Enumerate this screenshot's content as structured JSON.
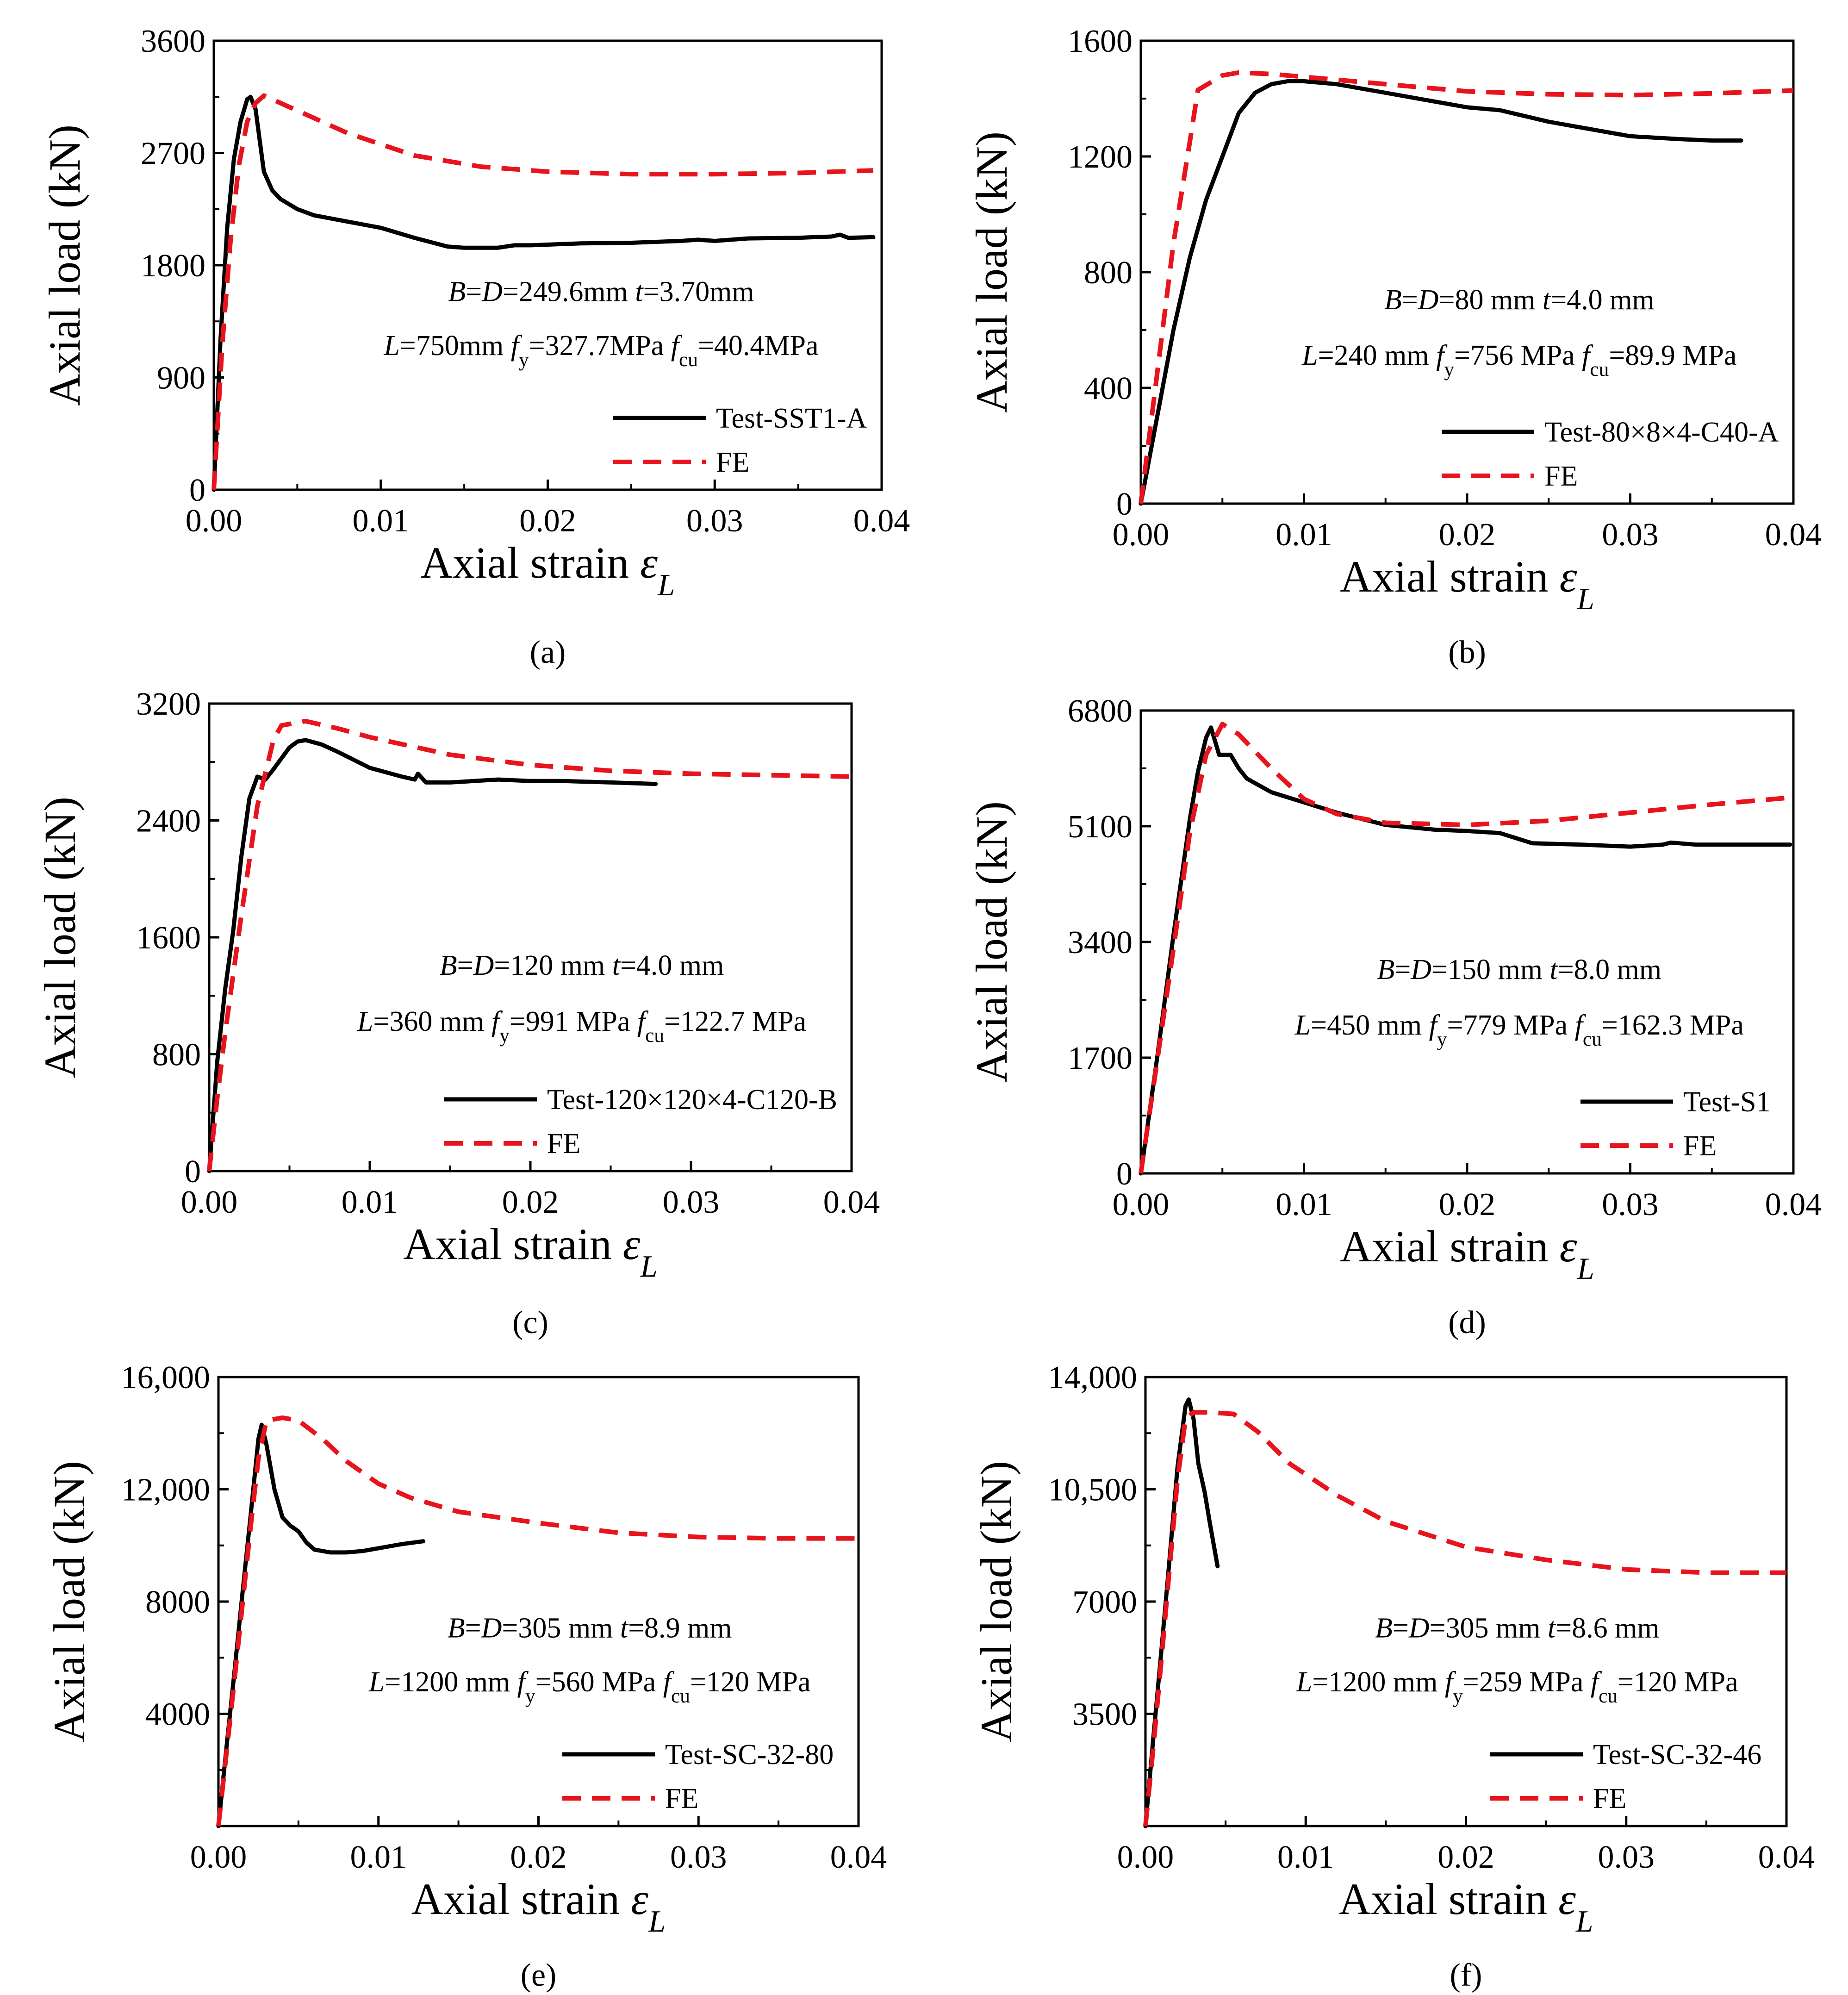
{
  "figure": {
    "captions": [
      "(a)",
      "(b)",
      "(c)",
      "(d)",
      "(e)",
      "(f)"
    ]
  },
  "colors": {
    "test": "#000000",
    "fe": "#e8141d",
    "axis": "#000000"
  },
  "chart_data": [
    {
      "id": "a",
      "type": "line",
      "caption": "(a)",
      "xlabel": "Axial strain εL",
      "ylabel": "Axial load (kN)",
      "xlim": [
        0,
        0.04
      ],
      "ylim": [
        0,
        3600
      ],
      "xticks": [
        0,
        0.01,
        0.02,
        0.03,
        0.04
      ],
      "xtick_labels": [
        "0.00",
        "0.01",
        "0.02",
        "0.03",
        "0.04"
      ],
      "yticks": [
        0,
        900,
        1800,
        2700,
        3600
      ],
      "ytick_labels": [
        "0",
        "900",
        "1800",
        "2700",
        "3600"
      ],
      "annotations": [
        "B=D=249.6mm t=3.70mm",
        "L=750mm fy=327.7MPa fcu=40.4MPa"
      ],
      "legend_position": "bottom-right",
      "series": [
        {
          "name": "Test-SST1-A",
          "style": "solid",
          "x": [
            0,
            0.0004,
            0.0008,
            0.0012,
            0.0016,
            0.002,
            0.0022,
            0.0025,
            0.003,
            0.0035,
            0.004,
            0.005,
            0.006,
            0.008,
            0.01,
            0.012,
            0.014,
            0.015,
            0.017,
            0.018,
            0.019,
            0.022,
            0.025,
            0.028,
            0.029,
            0.03,
            0.032,
            0.035,
            0.037,
            0.0375,
            0.038,
            0.0395
          ],
          "y": [
            0,
            1200,
            2100,
            2650,
            2950,
            3130,
            3150,
            3050,
            2550,
            2400,
            2330,
            2250,
            2200,
            2150,
            2100,
            2020,
            1950,
            1940,
            1940,
            1960,
            1960,
            1975,
            1980,
            1995,
            2005,
            1995,
            2015,
            2020,
            2030,
            2045,
            2020,
            2025
          ]
        },
        {
          "name": "FE",
          "style": "dashed",
          "x": [
            0,
            0.0005,
            0.001,
            0.0015,
            0.002,
            0.0025,
            0.003,
            0.005,
            0.008,
            0.012,
            0.016,
            0.02,
            0.025,
            0.03,
            0.035,
            0.0395
          ],
          "y": [
            0,
            1150,
            2000,
            2600,
            2950,
            3100,
            3160,
            3040,
            2860,
            2680,
            2590,
            2550,
            2530,
            2530,
            2540,
            2560
          ]
        }
      ]
    },
    {
      "id": "b",
      "type": "line",
      "caption": "(b)",
      "xlabel": "Axial strain εL",
      "ylabel": "Axial load (kN)",
      "xlim": [
        0,
        0.04
      ],
      "ylim": [
        0,
        1600
      ],
      "xticks": [
        0,
        0.01,
        0.02,
        0.03,
        0.04
      ],
      "xtick_labels": [
        "0.00",
        "0.01",
        "0.02",
        "0.03",
        "0.04"
      ],
      "yticks": [
        0,
        400,
        800,
        1200,
        1600
      ],
      "ytick_labels": [
        "0",
        "400",
        "800",
        "1200",
        "1600"
      ],
      "annotations": [
        "B=D=80 mm t=4.0 mm",
        "L=240 mm fy=756 MPa fcu=89.9 MPa"
      ],
      "legend_position": "bottom-right",
      "series": [
        {
          "name": "Test-80×8×4-C40-A",
          "style": "solid",
          "x": [
            0,
            0.001,
            0.002,
            0.003,
            0.004,
            0.005,
            0.006,
            0.007,
            0.008,
            0.009,
            0.01,
            0.012,
            0.015,
            0.018,
            0.02,
            0.022,
            0.025,
            0.028,
            0.03,
            0.033,
            0.035,
            0.0368
          ],
          "y": [
            0,
            300,
            600,
            850,
            1050,
            1200,
            1350,
            1420,
            1450,
            1460,
            1460,
            1450,
            1420,
            1390,
            1370,
            1360,
            1320,
            1290,
            1270,
            1260,
            1255,
            1255
          ]
        },
        {
          "name": "FE",
          "style": "dashed",
          "x": [
            0,
            0.001,
            0.002,
            0.003,
            0.0035,
            0.005,
            0.006,
            0.008,
            0.01,
            0.015,
            0.02,
            0.025,
            0.03,
            0.035,
            0.04
          ],
          "y": [
            0,
            450,
            900,
            1250,
            1430,
            1480,
            1490,
            1485,
            1475,
            1450,
            1425,
            1415,
            1412,
            1418,
            1428
          ]
        }
      ]
    },
    {
      "id": "c",
      "type": "line",
      "caption": "(c)",
      "xlabel": "Axial strain εL",
      "ylabel": "Axial load (kN)",
      "xlim": [
        0,
        0.04
      ],
      "ylim": [
        0,
        3200
      ],
      "xticks": [
        0,
        0.01,
        0.02,
        0.03,
        0.04
      ],
      "xtick_labels": [
        "0.00",
        "0.01",
        "0.02",
        "0.03",
        "0.04"
      ],
      "yticks": [
        0,
        800,
        1600,
        2400,
        3200
      ],
      "ytick_labels": [
        "0",
        "800",
        "1600",
        "2400",
        "3200"
      ],
      "annotations": [
        "B=D=120 mm t=4.0 mm",
        "L=360 mm fy=991 MPa fcu=122.7 MPa"
      ],
      "legend_position": "bottom-right",
      "series": [
        {
          "name": "Test-120×120×4-C120-B",
          "style": "solid",
          "x": [
            0,
            0.0005,
            0.001,
            0.0015,
            0.002,
            0.0025,
            0.003,
            0.0035,
            0.004,
            0.005,
            0.0055,
            0.006,
            0.007,
            0.008,
            0.01,
            0.012,
            0.0128,
            0.013,
            0.0135,
            0.015,
            0.018,
            0.02,
            0.022,
            0.025,
            0.0278
          ],
          "y": [
            0,
            750,
            1250,
            1650,
            2150,
            2550,
            2700,
            2680,
            2750,
            2900,
            2940,
            2950,
            2920,
            2870,
            2760,
            2700,
            2680,
            2720,
            2660,
            2660,
            2680,
            2670,
            2670,
            2660,
            2650
          ]
        },
        {
          "name": "FE",
          "style": "dashed",
          "x": [
            0,
            0.0005,
            0.001,
            0.0015,
            0.002,
            0.003,
            0.004,
            0.0045,
            0.006,
            0.008,
            0.01,
            0.015,
            0.02,
            0.025,
            0.03,
            0.035,
            0.04
          ],
          "y": [
            0,
            500,
            950,
            1350,
            1750,
            2500,
            2950,
            3050,
            3080,
            3030,
            2970,
            2850,
            2780,
            2740,
            2720,
            2710,
            2700
          ]
        }
      ]
    },
    {
      "id": "d",
      "type": "line",
      "caption": "(d)",
      "xlabel": "Axial strain εL",
      "ylabel": "Axial load (kN)",
      "xlim": [
        0,
        0.04
      ],
      "ylim": [
        0,
        6800
      ],
      "xticks": [
        0,
        0.01,
        0.02,
        0.03,
        0.04
      ],
      "xtick_labels": [
        "0.00",
        "0.01",
        "0.02",
        "0.03",
        "0.04"
      ],
      "yticks": [
        0,
        1700,
        3400,
        5100,
        6800
      ],
      "ytick_labels": [
        "0",
        "1700",
        "3400",
        "5100",
        "6800"
      ],
      "annotations": [
        "B=D=150 mm t=8.0 mm",
        "L=450 mm fy=779 MPa fcu=162.3 MPa"
      ],
      "legend_position": "bottom-right",
      "series": [
        {
          "name": "Test-S1",
          "style": "solid",
          "x": [
            0,
            0.001,
            0.002,
            0.003,
            0.0035,
            0.004,
            0.0043,
            0.0048,
            0.0055,
            0.006,
            0.0065,
            0.008,
            0.01,
            0.012,
            0.015,
            0.018,
            0.02,
            0.022,
            0.024,
            0.027,
            0.03,
            0.032,
            0.0325,
            0.034,
            0.037,
            0.0398
          ],
          "y": [
            0,
            1700,
            3500,
            5200,
            5900,
            6400,
            6550,
            6150,
            6150,
            5950,
            5800,
            5600,
            5450,
            5300,
            5120,
            5050,
            5030,
            5000,
            4850,
            4830,
            4800,
            4830,
            4860,
            4830,
            4830,
            4830
          ]
        },
        {
          "name": "FE",
          "style": "dashed",
          "x": [
            0,
            0.001,
            0.002,
            0.003,
            0.004,
            0.005,
            0.006,
            0.008,
            0.01,
            0.012,
            0.015,
            0.02,
            0.025,
            0.03,
            0.035,
            0.0398
          ],
          "y": [
            0,
            1650,
            3300,
            5000,
            6150,
            6600,
            6450,
            5950,
            5500,
            5280,
            5150,
            5120,
            5180,
            5300,
            5420,
            5520
          ]
        }
      ]
    },
    {
      "id": "e",
      "type": "line",
      "caption": "(e)",
      "xlabel": "Axial strain εL",
      "ylabel": "Axial load (kN)",
      "xlim": [
        0,
        0.04
      ],
      "ylim": [
        0,
        16000
      ],
      "xticks": [
        0,
        0.01,
        0.02,
        0.03,
        0.04
      ],
      "xtick_labels": [
        "0.00",
        "0.01",
        "0.02",
        "0.03",
        "0.04"
      ],
      "yticks": [
        4000,
        8000,
        12000,
        16000
      ],
      "ytick_labels": [
        "4000",
        "8000",
        "12,000",
        "16,000"
      ],
      "annotations": [
        "B=D=305 mm t=8.9 mm",
        "L=1200 mm fy=560 MPa fcu=120 MPa"
      ],
      "legend_position": "bottom-right",
      "series": [
        {
          "name": "Test-SC-32-80",
          "style": "solid",
          "x": [
            0,
            0.0005,
            0.001,
            0.0015,
            0.002,
            0.0025,
            0.0027,
            0.003,
            0.0035,
            0.004,
            0.0045,
            0.005,
            0.0055,
            0.006,
            0.007,
            0.008,
            0.009,
            0.01,
            0.0115,
            0.0128
          ],
          "y": [
            0,
            2800,
            5500,
            8300,
            11000,
            13800,
            14300,
            13600,
            12000,
            11000,
            10700,
            10500,
            10100,
            9850,
            9750,
            9750,
            9800,
            9900,
            10050,
            10150
          ]
        },
        {
          "name": "FE",
          "style": "dashed",
          "x": [
            0,
            0.0005,
            0.001,
            0.0015,
            0.002,
            0.0025,
            0.003,
            0.004,
            0.005,
            0.0065,
            0.008,
            0.01,
            0.012,
            0.015,
            0.02,
            0.025,
            0.03,
            0.035,
            0.04
          ],
          "y": [
            0,
            2600,
            5200,
            7900,
            10600,
            13100,
            14450,
            14550,
            14450,
            13800,
            13000,
            12200,
            11700,
            11200,
            10800,
            10450,
            10300,
            10250,
            10250
          ]
        }
      ]
    },
    {
      "id": "f",
      "type": "line",
      "caption": "(f)",
      "xlabel": "Axial strain εL",
      "ylabel": "Axial load (kN)",
      "xlim": [
        0,
        0.04
      ],
      "ylim": [
        0,
        14000
      ],
      "xticks": [
        0,
        0.01,
        0.02,
        0.03,
        0.04
      ],
      "xtick_labels": [
        "0.00",
        "0.01",
        "0.02",
        "0.03",
        "0.04"
      ],
      "yticks": [
        3500,
        7000,
        10500,
        14000
      ],
      "ytick_labels": [
        "3500",
        "7000",
        "10,500",
        "14,000"
      ],
      "annotations": [
        "B=D=305 mm t=8.6 mm",
        "L=1200 mm fy=259 MPa fcu=120 MPa"
      ],
      "legend_position": "bottom-right",
      "series": [
        {
          "name": "Test-SC-32-46",
          "style": "solid",
          "x": [
            0,
            0.0005,
            0.001,
            0.0015,
            0.002,
            0.0025,
            0.0027,
            0.003,
            0.0033,
            0.0037,
            0.004,
            0.0045
          ],
          "y": [
            0,
            2800,
            5500,
            8300,
            11200,
            13100,
            13300,
            12700,
            11300,
            10400,
            9500,
            8100
          ]
        },
        {
          "name": "FE",
          "style": "dashed",
          "x": [
            0,
            0.0005,
            0.001,
            0.0015,
            0.002,
            0.0025,
            0.003,
            0.004,
            0.0055,
            0.007,
            0.009,
            0.012,
            0.015,
            0.02,
            0.025,
            0.03,
            0.035,
            0.04
          ],
          "y": [
            0,
            2500,
            5200,
            8000,
            10800,
            12700,
            12900,
            12900,
            12850,
            12300,
            11300,
            10300,
            9500,
            8700,
            8300,
            8000,
            7900,
            7900
          ]
        }
      ]
    }
  ]
}
